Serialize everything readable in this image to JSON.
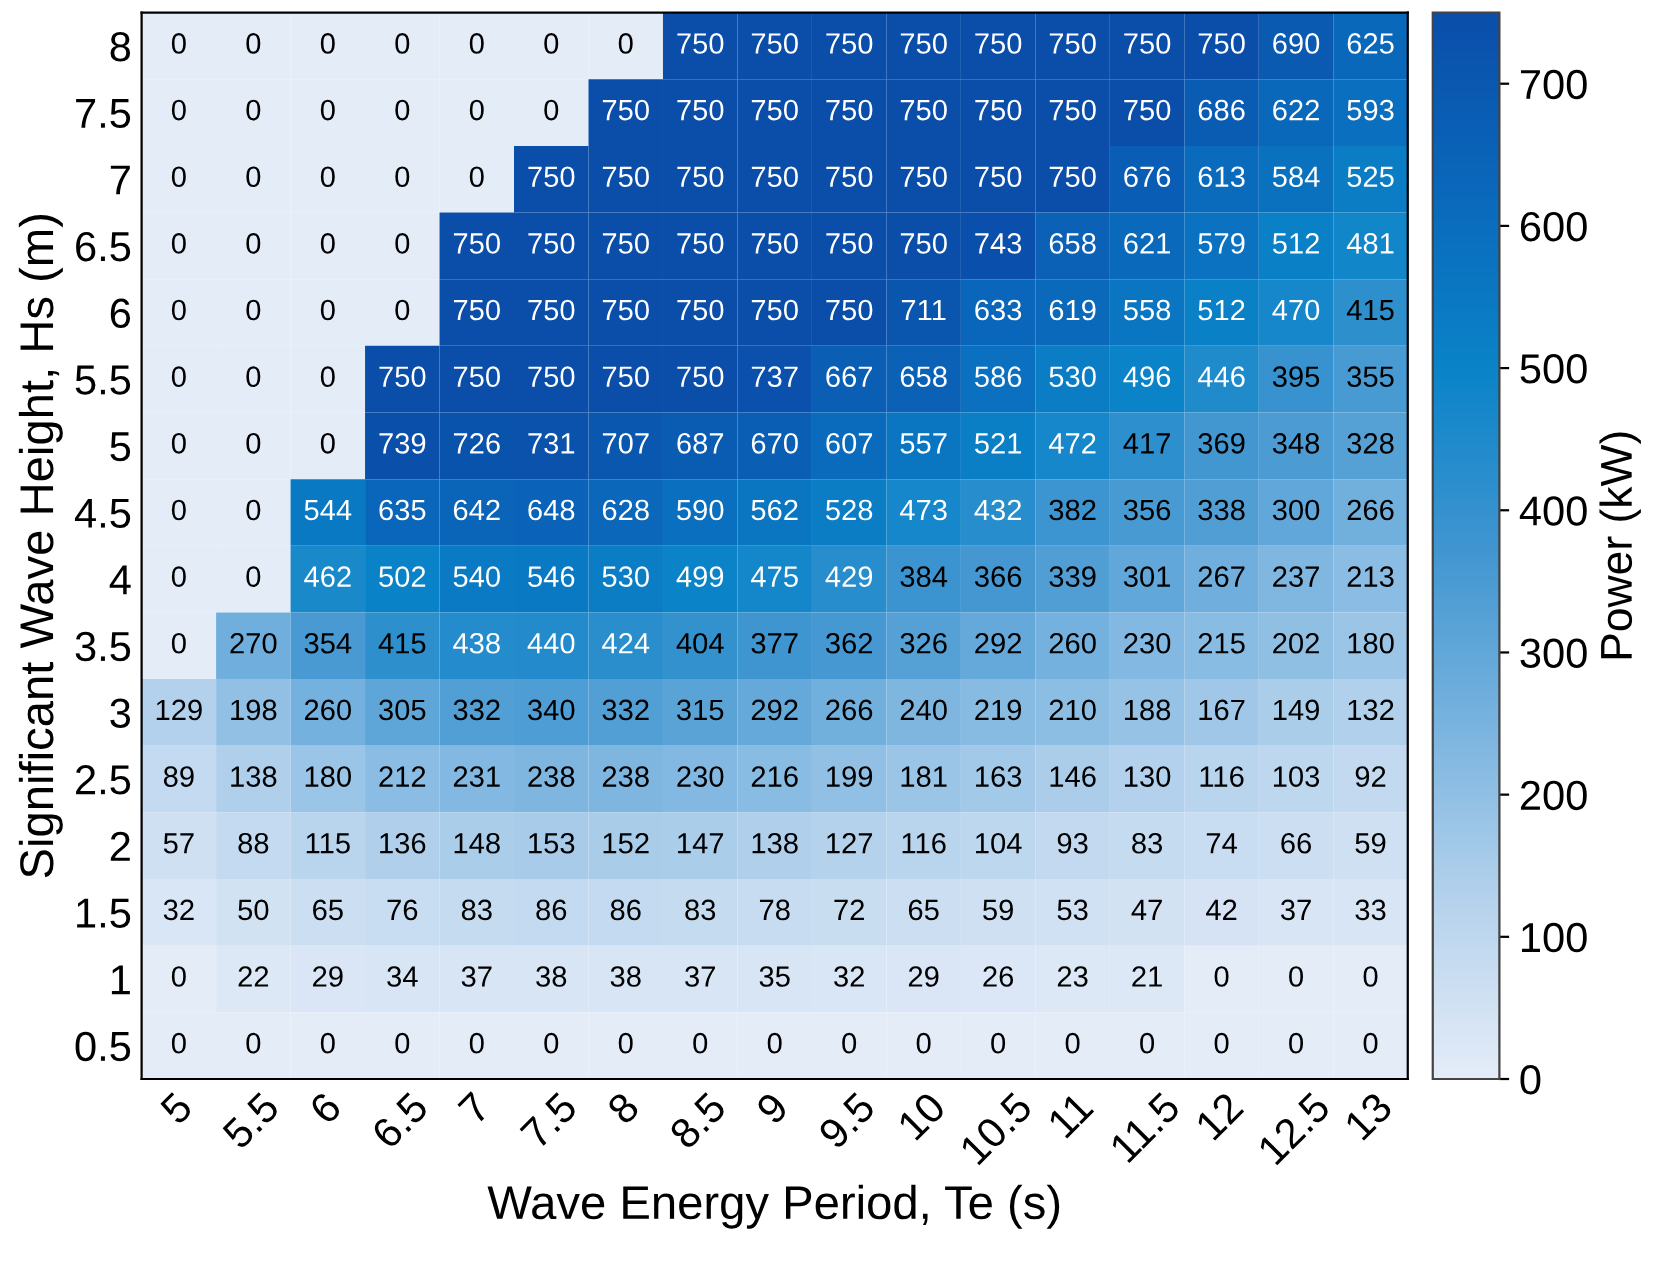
{
  "chart_data": {
    "type": "heatmap",
    "xlabel": "Wave Energy Period, Te (s)",
    "ylabel": "Significant Wave Height, Hs (m)",
    "clabel": "Power (kW)",
    "categories": [
      "5",
      "5.5",
      "6",
      "6.5",
      "7",
      "7.5",
      "8",
      "8.5",
      "9",
      "9.5",
      "10",
      "10.5",
      "11",
      "11.5",
      "12",
      "12.5",
      "13"
    ],
    "y_categories": [
      "8",
      "7.5",
      "7",
      "6.5",
      "6",
      "5.5",
      "5",
      "4.5",
      "4",
      "3.5",
      "3",
      "2.5",
      "2",
      "1.5",
      "1",
      "0.5"
    ],
    "cells": [
      [
        0,
        0,
        0,
        0,
        0,
        0,
        0,
        750,
        750,
        750,
        750,
        750,
        750,
        750,
        750,
        690,
        625
      ],
      [
        0,
        0,
        0,
        0,
        0,
        0,
        750,
        750,
        750,
        750,
        750,
        750,
        750,
        750,
        686,
        622,
        593
      ],
      [
        0,
        0,
        0,
        0,
        0,
        750,
        750,
        750,
        750,
        750,
        750,
        750,
        750,
        676,
        613,
        584,
        525
      ],
      [
        0,
        0,
        0,
        0,
        750,
        750,
        750,
        750,
        750,
        750,
        750,
        743,
        658,
        621,
        579,
        512,
        481
      ],
      [
        0,
        0,
        0,
        0,
        750,
        750,
        750,
        750,
        750,
        750,
        711,
        633,
        619,
        558,
        512,
        470,
        415
      ],
      [
        0,
        0,
        0,
        750,
        750,
        750,
        750,
        750,
        737,
        667,
        658,
        586,
        530,
        496,
        446,
        395,
        355
      ],
      [
        0,
        0,
        0,
        739,
        726,
        731,
        707,
        687,
        670,
        607,
        557,
        521,
        472,
        417,
        369,
        348,
        328
      ],
      [
        0,
        0,
        544,
        635,
        642,
        648,
        628,
        590,
        562,
        528,
        473,
        432,
        382,
        356,
        338,
        300,
        266
      ],
      [
        0,
        0,
        462,
        502,
        540,
        546,
        530,
        499,
        475,
        429,
        384,
        366,
        339,
        301,
        267,
        237,
        213
      ],
      [
        0,
        270,
        354,
        415,
        438,
        440,
        424,
        404,
        377,
        362,
        326,
        292,
        260,
        230,
        215,
        202,
        180
      ],
      [
        129,
        198,
        260,
        305,
        332,
        340,
        332,
        315,
        292,
        266,
        240,
        219,
        210,
        188,
        167,
        149,
        132
      ],
      [
        89,
        138,
        180,
        212,
        231,
        238,
        238,
        230,
        216,
        199,
        181,
        163,
        146,
        130,
        116,
        103,
        92
      ],
      [
        57,
        88,
        115,
        136,
        148,
        153,
        152,
        147,
        138,
        127,
        116,
        104,
        93,
        83,
        74,
        66,
        59
      ],
      [
        32,
        50,
        65,
        76,
        83,
        86,
        86,
        83,
        78,
        72,
        65,
        59,
        53,
        47,
        42,
        37,
        33
      ],
      [
        0,
        22,
        29,
        34,
        37,
        38,
        38,
        37,
        35,
        32,
        29,
        26,
        23,
        21,
        0,
        0,
        0
      ],
      [
        0,
        0,
        0,
        0,
        0,
        0,
        0,
        0,
        0,
        0,
        0,
        0,
        0,
        0,
        0,
        0,
        0
      ]
    ],
    "clim": [
      0,
      750
    ],
    "cticks": [
      0,
      100,
      200,
      300,
      400,
      500,
      600,
      700
    ],
    "data_labels": true
  }
}
